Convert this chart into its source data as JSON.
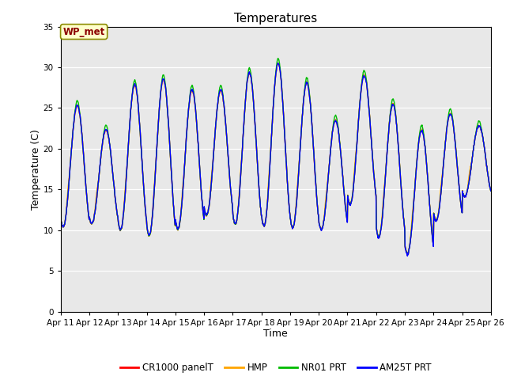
{
  "title": "Temperatures",
  "xlabel": "Time",
  "ylabel": "Temperature (C)",
  "ylim": [
    0,
    35
  ],
  "yticks": [
    0,
    5,
    10,
    15,
    20,
    25,
    30,
    35
  ],
  "date_labels": [
    "Apr 11",
    "Apr 12",
    "Apr 13",
    "Apr 14",
    "Apr 15",
    "Apr 16",
    "Apr 17",
    "Apr 18",
    "Apr 19",
    "Apr 20",
    "Apr 21",
    "Apr 22",
    "Apr 23",
    "Apr 24",
    "Apr 25",
    "Apr 26"
  ],
  "series_colors": {
    "CR1000 panelT": "#FF0000",
    "HMP": "#FFA500",
    "NR01 PRT": "#00BB00",
    "AM25T PRT": "#0000FF"
  },
  "annotation_text": "WP_met",
  "plot_bg_color": "#E8E8E8",
  "linewidth": 1.0,
  "n_days": 15,
  "pts_per_day": 96,
  "day_peaks": [
    25.3,
    22.3,
    27.8,
    28.5,
    27.2,
    27.2,
    29.3,
    30.5,
    28.1,
    23.5,
    29.0,
    25.5,
    22.3,
    24.3,
    22.8
  ],
  "day_troughs": [
    10.4,
    10.8,
    10.0,
    9.3,
    10.1,
    11.8,
    10.7,
    10.5,
    10.3,
    10.1,
    13.2,
    9.2,
    7.1,
    11.2,
    14.2
  ]
}
